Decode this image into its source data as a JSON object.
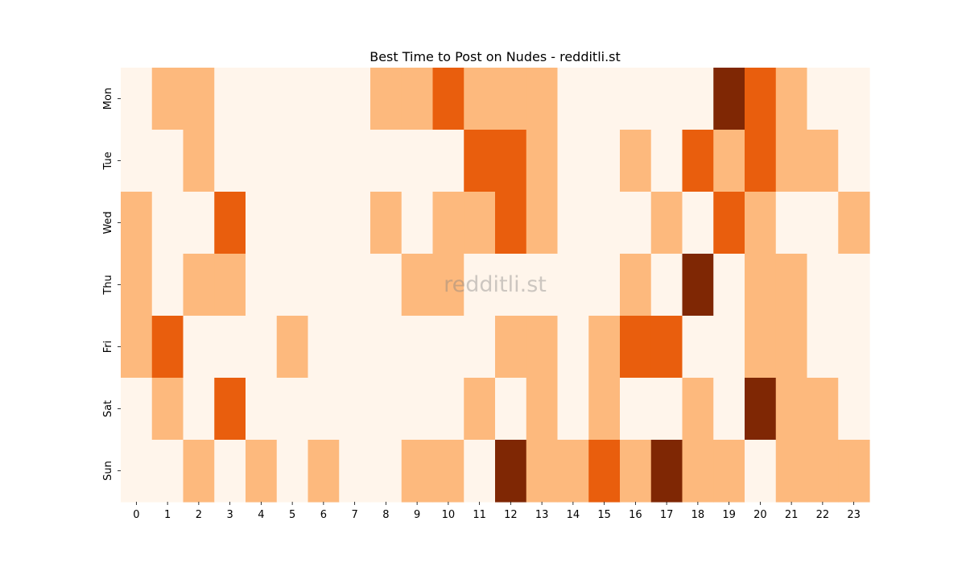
{
  "chart_data": {
    "type": "heatmap",
    "title": "Best Time to Post on Nudes - redditli.st",
    "watermark": "redditli.st",
    "xlabel": "",
    "ylabel": "",
    "x": [
      "0",
      "1",
      "2",
      "3",
      "4",
      "5",
      "6",
      "7",
      "8",
      "9",
      "10",
      "11",
      "12",
      "13",
      "14",
      "15",
      "16",
      "17",
      "18",
      "19",
      "20",
      "21",
      "22",
      "23"
    ],
    "y": [
      "Mon",
      "Tue",
      "Wed",
      "Thu",
      "Fri",
      "Sat",
      "Sun"
    ],
    "level_colors": [
      "#fff5eb",
      "#fdb97d",
      "#e95e0d",
      "#7f2704"
    ],
    "values": [
      [
        0,
        1,
        1,
        0,
        0,
        0,
        0,
        0,
        1,
        1,
        2,
        1,
        1,
        1,
        0,
        0,
        0,
        0,
        0,
        3,
        2,
        1,
        0,
        0
      ],
      [
        0,
        0,
        1,
        0,
        0,
        0,
        0,
        0,
        0,
        0,
        0,
        2,
        2,
        1,
        0,
        0,
        1,
        0,
        2,
        1,
        2,
        1,
        1,
        0
      ],
      [
        1,
        0,
        0,
        2,
        0,
        0,
        0,
        0,
        1,
        0,
        1,
        1,
        2,
        1,
        0,
        0,
        0,
        1,
        0,
        2,
        1,
        0,
        0,
        1
      ],
      [
        1,
        0,
        1,
        1,
        0,
        0,
        0,
        0,
        0,
        1,
        1,
        0,
        0,
        0,
        0,
        0,
        1,
        0,
        3,
        0,
        1,
        1,
        0,
        0
      ],
      [
        1,
        2,
        0,
        0,
        0,
        1,
        0,
        0,
        0,
        0,
        0,
        0,
        1,
        1,
        0,
        1,
        2,
        2,
        0,
        0,
        1,
        1,
        0,
        0
      ],
      [
        0,
        1,
        0,
        2,
        0,
        0,
        0,
        0,
        0,
        0,
        0,
        1,
        0,
        1,
        0,
        1,
        0,
        0,
        1,
        0,
        3,
        1,
        1,
        0
      ],
      [
        0,
        0,
        1,
        0,
        1,
        0,
        1,
        0,
        0,
        1,
        1,
        0,
        3,
        1,
        1,
        2,
        1,
        3,
        1,
        1,
        0,
        1,
        1,
        1
      ]
    ],
    "grid": false,
    "colorbar": false
  }
}
